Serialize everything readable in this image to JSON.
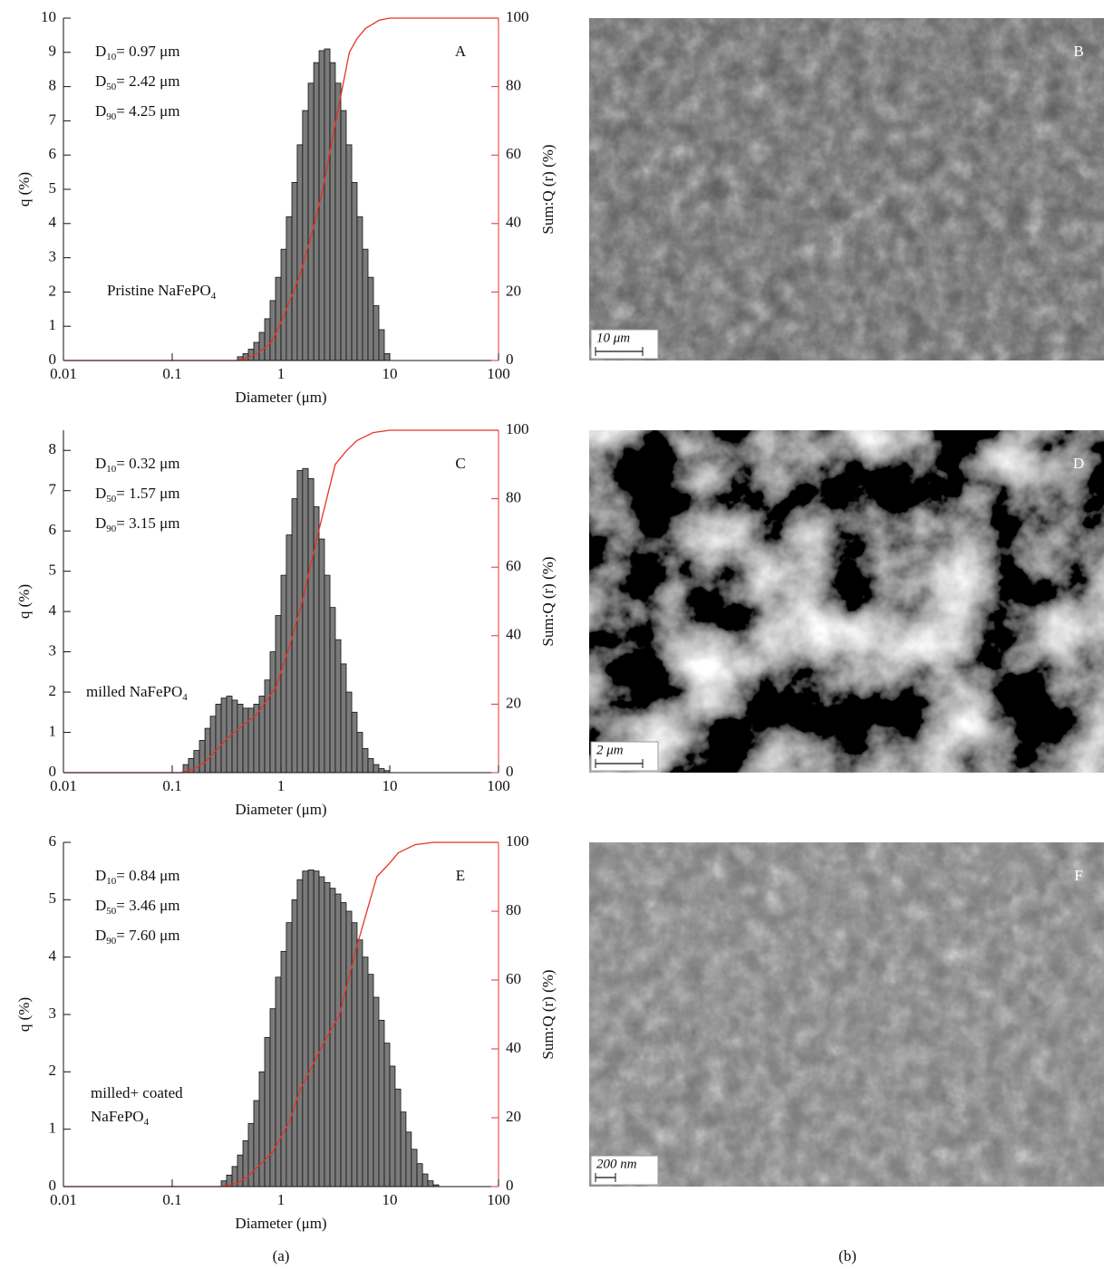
{
  "chart_data": [
    {
      "type": "histogram",
      "panel": "A",
      "stats": [
        {
          "name": "D",
          "sub": "10",
          "text": "= 0.97 μm"
        },
        {
          "name": "D",
          "sub": "50",
          "text": "= 2.42 μm"
        },
        {
          "name": "D",
          "sub": "90",
          "text": "= 4.25 μm"
        }
      ],
      "sample": [
        {
          "text": "Pristine NaFePO",
          "sub": "4"
        }
      ],
      "xlabel": "Diameter (μm)",
      "ylabel": "q (%)",
      "y2label": "Sum:Q (r) (%)",
      "xscale": "log",
      "xlim": [
        0.01,
        100
      ],
      "xticks": [
        0.01,
        0.1,
        1,
        10,
        100
      ],
      "ylim": [
        0,
        10
      ],
      "yticks": [
        0,
        1,
        2,
        3,
        4,
        5,
        6,
        7,
        8,
        9,
        10
      ],
      "y2lim": [
        0,
        100
      ],
      "y2ticks": [
        0,
        20,
        40,
        60,
        80,
        100
      ],
      "color": "#7a7a7a",
      "bins": [
        0.398,
        0.447,
        0.501,
        0.562,
        0.631,
        0.708,
        0.794,
        0.891,
        1,
        1.12,
        1.26,
        1.41,
        1.58,
        1.78,
        2,
        2.24,
        2.51,
        2.82,
        3.16,
        3.55,
        3.98,
        4.47,
        5.01,
        5.62,
        6.31,
        7.08,
        7.94,
        8.91,
        10
      ],
      "values": [
        0.11,
        0.2,
        0.33,
        0.53,
        0.82,
        1.22,
        1.75,
        2.43,
        3.25,
        4.2,
        5.2,
        6.3,
        7.3,
        8.1,
        8.7,
        9.05,
        9.1,
        8.7,
        8.1,
        7.3,
        6.3,
        5.2,
        4.2,
        3.25,
        2.43,
        1.6,
        0.9,
        0.2
      ],
      "line": {
        "axis": "y2",
        "color": "#e8312a",
        "x": [
          0.01,
          0.4,
          0.5,
          0.6,
          0.8,
          0.97,
          1.5,
          2,
          2.42,
          3.2,
          4.25,
          5,
          6,
          8,
          10,
          100
        ],
        "values": [
          0,
          0,
          0.8,
          2,
          5,
          10,
          25,
          39,
          50,
          70,
          90,
          94,
          97,
          99.4,
          100,
          100
        ]
      }
    },
    {
      "type": "histogram",
      "panel": "C",
      "stats": [
        {
          "name": "D",
          "sub": "10",
          "text": "= 0.32 μm"
        },
        {
          "name": "D",
          "sub": "50",
          "text": "= 1.57 μm"
        },
        {
          "name": "D",
          "sub": "90",
          "text": "= 3.15 μm"
        }
      ],
      "sample": [
        {
          "text": "milled NaFePO",
          "sub": "4"
        }
      ],
      "xlabel": "Diameter (μm)",
      "ylabel": "q (%)",
      "y2label": "Sum:Q (r) (%)",
      "xscale": "log",
      "xlim": [
        0.01,
        100
      ],
      "xticks": [
        0.01,
        0.1,
        1,
        10,
        100
      ],
      "ylim": [
        0,
        8.5
      ],
      "yticks": [
        0,
        1,
        2,
        3,
        4,
        5,
        6,
        7,
        8
      ],
      "y2lim": [
        0,
        100
      ],
      "y2ticks": [
        0,
        20,
        40,
        60,
        80,
        100
      ],
      "color": "#7a7a7a",
      "bins": [
        0.126,
        0.141,
        0.158,
        0.178,
        0.2,
        0.224,
        0.251,
        0.282,
        0.316,
        0.355,
        0.398,
        0.447,
        0.501,
        0.562,
        0.631,
        0.708,
        0.794,
        0.891,
        1,
        1.12,
        1.26,
        1.41,
        1.58,
        1.78,
        2,
        2.24,
        2.51,
        2.82,
        3.16,
        3.55,
        3.98,
        4.47,
        5.01,
        5.62,
        6.31,
        7.08,
        7.94,
        8.91,
        10
      ],
      "values": [
        0.2,
        0.35,
        0.55,
        0.8,
        1.1,
        1.4,
        1.7,
        1.85,
        1.9,
        1.8,
        1.7,
        1.6,
        1.6,
        1.7,
        1.9,
        2.3,
        3.0,
        3.9,
        4.9,
        5.9,
        6.8,
        7.5,
        7.55,
        7.3,
        6.6,
        5.8,
        4.9,
        4.1,
        3.3,
        2.7,
        2.0,
        1.5,
        1.0,
        0.6,
        0.35,
        0.2,
        0.1,
        0.05
      ],
      "line": {
        "axis": "y2",
        "color": "#e8312a",
        "x": [
          0.01,
          0.12,
          0.16,
          0.2,
          0.32,
          0.45,
          0.6,
          0.9,
          1.2,
          1.57,
          2.2,
          3.15,
          4,
          5,
          7,
          10,
          100
        ],
        "values": [
          0,
          0,
          1.2,
          3,
          10,
          14,
          17,
          25,
          37,
          50,
          70,
          90,
          94,
          97,
          99.3,
          100,
          100
        ]
      }
    },
    {
      "type": "histogram",
      "panel": "E",
      "stats": [
        {
          "name": "D",
          "sub": "10",
          "text": "= 0.84 μm"
        },
        {
          "name": "D",
          "sub": "50",
          "text": "= 3.46 μm"
        },
        {
          "name": "D",
          "sub": "90",
          "text": "= 7.60 μm"
        }
      ],
      "sample": [
        {
          "text": "milled+ coated"
        },
        {
          "text": "NaFePO",
          "sub": "4"
        }
      ],
      "xlabel": "Diameter (μm)",
      "ylabel": "q (%)",
      "y2label": "Sum:Q (r) (%)",
      "xscale": "log",
      "xlim": [
        0.01,
        100
      ],
      "xticks": [
        0.01,
        0.1,
        1,
        10,
        100
      ],
      "ylim": [
        0,
        6
      ],
      "yticks": [
        0,
        1,
        2,
        3,
        4,
        5,
        6
      ],
      "y2lim": [
        0,
        100
      ],
      "y2ticks": [
        0,
        20,
        40,
        60,
        80,
        100
      ],
      "color": "#7a7a7a",
      "bins": [
        0.282,
        0.316,
        0.355,
        0.398,
        0.447,
        0.501,
        0.562,
        0.631,
        0.708,
        0.794,
        0.891,
        1,
        1.12,
        1.26,
        1.41,
        1.58,
        1.78,
        2,
        2.24,
        2.51,
        2.82,
        3.16,
        3.55,
        3.98,
        4.47,
        5.01,
        5.62,
        6.31,
        7.08,
        7.94,
        8.91,
        10,
        11.2,
        12.6,
        14.1,
        15.8,
        17.8,
        20,
        22.4,
        25.1,
        28.2
      ],
      "values": [
        0.1,
        0.2,
        0.35,
        0.55,
        0.8,
        1.1,
        1.5,
        2.0,
        2.6,
        3.1,
        3.65,
        4.1,
        4.6,
        5.0,
        5.35,
        5.5,
        5.52,
        5.5,
        5.4,
        5.3,
        5.2,
        5.1,
        4.95,
        4.8,
        4.6,
        4.3,
        4.0,
        3.7,
        3.3,
        2.9,
        2.5,
        2.1,
        1.7,
        1.3,
        0.95,
        0.65,
        0.4,
        0.22,
        0.1,
        0.03
      ],
      "line": {
        "axis": "y2",
        "color": "#e8312a",
        "x": [
          0.01,
          0.28,
          0.4,
          0.5,
          0.84,
          1.2,
          1.5,
          2.5,
          3.46,
          5,
          7.6,
          10,
          12,
          17,
          25,
          100
        ],
        "values": [
          0,
          0,
          1,
          3,
          10,
          19,
          28,
          42,
          50,
          70,
          90,
          94,
          97,
          99.3,
          100,
          100
        ]
      }
    }
  ],
  "images": [
    {
      "panel": "B",
      "scale": "10 μm"
    },
    {
      "panel": "D",
      "scale": "2 μm"
    },
    {
      "panel": "F",
      "scale": "200 nm"
    }
  ],
  "captions": [
    "(a)",
    "(b)"
  ]
}
